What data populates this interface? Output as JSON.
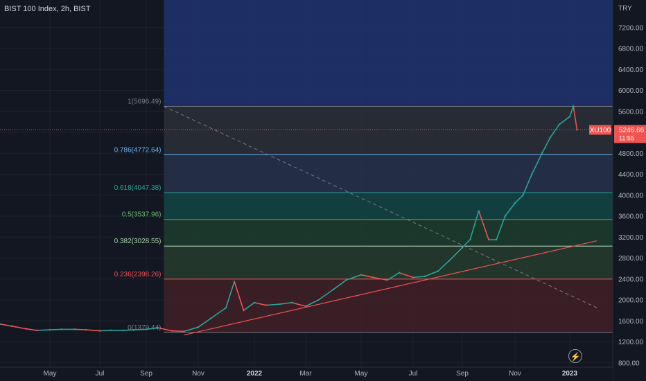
{
  "header": {
    "title": "BIST 100 Index, 2h, BIST"
  },
  "price_axis": {
    "currency": "TRY"
  },
  "last_price": {
    "symbol": "XU100",
    "value": "5246.66",
    "countdown": "11:55",
    "color": "#f05350"
  },
  "chart_data": {
    "type": "line",
    "symbol": "XU100",
    "series_style": "candlestick",
    "colors": {
      "up": "#26a69a",
      "down": "#ef5350",
      "background": "#131722"
    },
    "y_ticks": [
      800,
      1200,
      1600,
      2000,
      2400,
      2800,
      3200,
      3600,
      4000,
      4400,
      4800,
      5200,
      5600,
      6000,
      6400,
      6800,
      7200
    ],
    "ylim": [
      750,
      7750
    ],
    "x_ticks": [
      "May",
      "Jul",
      "Sep",
      "Nov",
      "2022",
      "Mar",
      "May",
      "Jul",
      "Sep",
      "Nov",
      "2023"
    ],
    "x": [
      "2021-03-01",
      "2021-03-15",
      "2021-04-01",
      "2021-04-15",
      "2021-05-01",
      "2021-05-15",
      "2021-06-01",
      "2021-06-15",
      "2021-07-01",
      "2021-07-15",
      "2021-08-01",
      "2021-08-15",
      "2021-09-01",
      "2021-09-15",
      "2021-10-01",
      "2021-10-15",
      "2021-11-01",
      "2021-11-15",
      "2021-12-01",
      "2021-12-10",
      "2021-12-20",
      "2022-01-01",
      "2022-01-15",
      "2022-02-01",
      "2022-02-15",
      "2022-03-01",
      "2022-03-15",
      "2022-04-01",
      "2022-04-15",
      "2022-05-01",
      "2022-05-15",
      "2022-06-01",
      "2022-06-15",
      "2022-07-01",
      "2022-07-15",
      "2022-08-01",
      "2022-08-15",
      "2022-09-01",
      "2022-09-10",
      "2022-09-20",
      "2022-10-01",
      "2022-10-10",
      "2022-10-20",
      "2022-11-01",
      "2022-11-10",
      "2022-11-20",
      "2022-12-01",
      "2022-12-10",
      "2022-12-20",
      "2023-01-01",
      "2023-01-05",
      "2023-01-09"
    ],
    "series": [
      {
        "values": [
          1540,
          1500,
          1450,
          1420,
          1430,
          1440,
          1440,
          1430,
          1410,
          1420,
          1420,
          1430,
          1440,
          1470,
          1410,
          1400,
          1480,
          1650,
          1850,
          2350,
          1800,
          1950,
          1900,
          1920,
          1950,
          1880,
          2000,
          2200,
          2380,
          2480,
          2430,
          2380,
          2520,
          2430,
          2450,
          2550,
          2750,
          3000,
          3150,
          3700,
          3150,
          3150,
          3600,
          3850,
          4000,
          4400,
          4800,
          5100,
          5350,
          5500,
          5700,
          5246.66
        ]
      }
    ],
    "fibonacci": {
      "levels": [
        {
          "ratio": "1",
          "price": 5696.49,
          "label": "1(5696.49)"
        },
        {
          "ratio": "0.786",
          "price": 4772.64,
          "label": "0.786(4772.64)"
        },
        {
          "ratio": "0.618",
          "price": 4047.38,
          "label": "0.618(4047.38)"
        },
        {
          "ratio": "0.5",
          "price": 3537.96,
          "label": "0.5(3537.96)"
        },
        {
          "ratio": "0.382",
          "price": 3028.55,
          "label": "0.382(3028.55)"
        },
        {
          "ratio": "0.236",
          "price": 2398.26,
          "label": "0.236(2398.26)"
        },
        {
          "ratio": "0",
          "price": 1379.44,
          "label": "0(1379.44)"
        }
      ],
      "start_date": "2021-09-22"
    },
    "trendline": {
      "color": "#f05350",
      "from": {
        "x": "2021-10-15",
        "y": 1330
      },
      "to": {
        "x": "2023-01-31",
        "y": 3130
      }
    },
    "diagonal": {
      "style": "dashed",
      "from": {
        "x": "2021-09-22",
        "y": 5696.49
      },
      "to": {
        "x": "2023-01-31",
        "y": 1850
      }
    }
  }
}
